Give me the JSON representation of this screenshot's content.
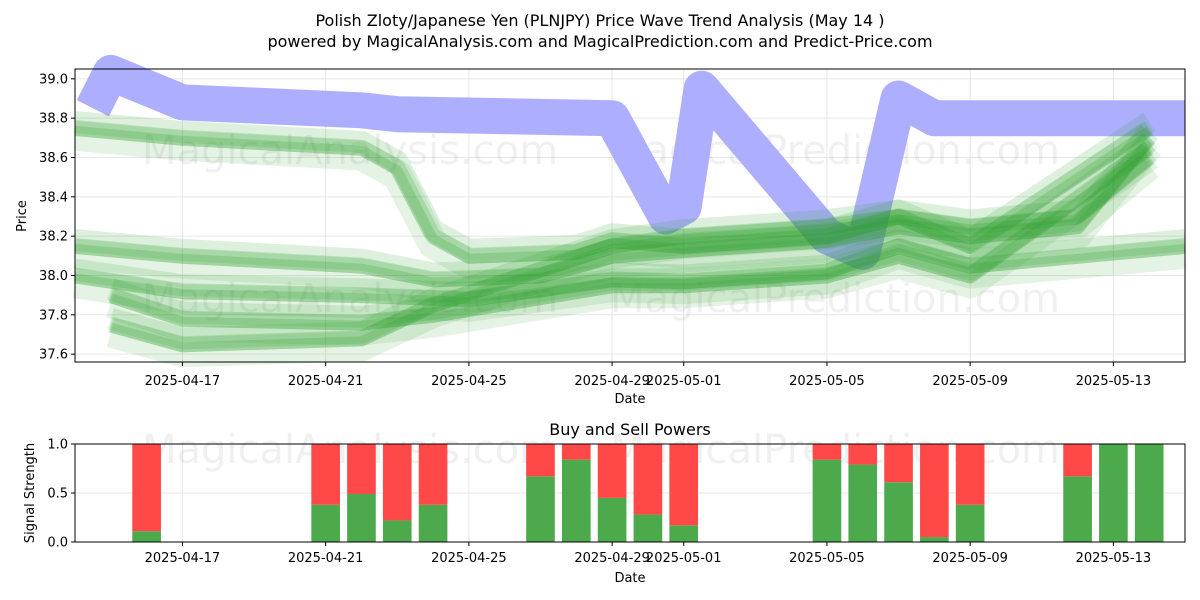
{
  "title_line1": "Polish Zloty/Japanese Yen (PLNJPY) Price Wave Trend Analysis (May 14 )",
  "title_line2": "powered by MagicalAnalysis.com and MagicalPrediction.com and Predict-Price.com",
  "watermarks": [
    "MagicalAnalysis.com",
    "MagicalPrediction.com"
  ],
  "colors": {
    "blue_band": "#aaaaff",
    "green_band": "#2ca02c",
    "buy": "#4caa4c",
    "sell": "#ff4848"
  },
  "chart_data": [
    {
      "type": "area",
      "title": "",
      "xlabel": "Date",
      "ylabel": "Price",
      "ylim": [
        37.56,
        39.05
      ],
      "yticks": [
        37.6,
        37.8,
        38.0,
        38.2,
        38.4,
        38.6,
        38.8,
        39.0
      ],
      "xticks": [
        "2025-04-17",
        "2025-04-21",
        "2025-04-25",
        "2025-04-29",
        "2025-05-01",
        "2025-05-05",
        "2025-05-09",
        "2025-05-13"
      ],
      "xlim": [
        "2025-04-14",
        "2025-05-15"
      ],
      "grid": true,
      "series": [
        {
          "color": "#aaaaff",
          "points": [
            [
              "2025-04-14T12:00",
              38.85
            ],
            [
              "2025-04-15",
              39.03
            ],
            [
              "2025-04-17",
              38.88
            ],
            [
              "2025-04-22",
              38.84
            ],
            [
              "2025-04-23",
              38.82
            ],
            [
              "2025-04-29",
              38.8
            ],
            [
              "2025-04-30T12:00",
              38.3
            ],
            [
              "2025-05-01",
              38.35
            ],
            [
              "2025-05-01T12:00",
              38.95
            ],
            [
              "2025-05-05",
              38.2
            ],
            [
              "2025-05-06",
              38.12
            ],
            [
              "2025-05-07",
              38.9
            ],
            [
              "2025-05-08",
              38.8
            ],
            [
              "2025-05-15",
              38.8
            ]
          ]
        },
        {
          "color": "#2ca02c",
          "points": [
            [
              "2025-04-14",
              38.75
            ],
            [
              "2025-04-17",
              38.7
            ],
            [
              "2025-04-22",
              38.65
            ],
            [
              "2025-04-23",
              38.55
            ],
            [
              "2025-04-24",
              38.2
            ],
            [
              "2025-04-25",
              38.1
            ],
            [
              "2025-04-28",
              38.12
            ],
            [
              "2025-04-29",
              38.18
            ],
            [
              "2025-05-01",
              38.15
            ],
            [
              "2025-05-05",
              38.2
            ],
            [
              "2025-05-07",
              38.3
            ],
            [
              "2025-05-09",
              38.25
            ],
            [
              "2025-05-12",
              38.3
            ],
            [
              "2025-05-14",
              38.6
            ]
          ]
        },
        {
          "color": "#2ca02c",
          "points": [
            [
              "2025-04-14",
              38.15
            ],
            [
              "2025-04-17",
              38.1
            ],
            [
              "2025-04-22",
              38.05
            ],
            [
              "2025-04-24",
              37.98
            ],
            [
              "2025-04-27",
              38.0
            ],
            [
              "2025-04-29",
              38.1
            ],
            [
              "2025-05-01",
              38.13
            ],
            [
              "2025-05-05",
              38.18
            ],
            [
              "2025-05-07",
              38.25
            ],
            [
              "2025-05-09",
              38.2
            ],
            [
              "2025-05-12",
              38.25
            ],
            [
              "2025-05-14",
              38.7
            ]
          ]
        },
        {
          "color": "#2ca02c",
          "points": [
            [
              "2025-04-14",
              38.0
            ],
            [
              "2025-04-17",
              37.92
            ],
            [
              "2025-04-22",
              37.9
            ],
            [
              "2025-04-25",
              37.88
            ],
            [
              "2025-04-29",
              37.98
            ],
            [
              "2025-05-01",
              37.97
            ],
            [
              "2025-05-05",
              38.02
            ],
            [
              "2025-05-07",
              38.15
            ],
            [
              "2025-05-09",
              38.05
            ],
            [
              "2025-05-12",
              38.1
            ],
            [
              "2025-05-15",
              38.15
            ]
          ]
        },
        {
          "color": "#2ca02c",
          "points": [
            [
              "2025-04-15",
              37.9
            ],
            [
              "2025-04-17",
              37.78
            ],
            [
              "2025-04-22",
              37.76
            ],
            [
              "2025-04-24",
              37.8
            ],
            [
              "2025-04-29",
              37.95
            ],
            [
              "2025-05-01",
              37.95
            ],
            [
              "2025-05-05",
              38.0
            ],
            [
              "2025-05-07",
              38.1
            ],
            [
              "2025-05-09",
              38.0
            ],
            [
              "2025-05-14",
              38.65
            ]
          ]
        },
        {
          "color": "#2ca02c",
          "points": [
            [
              "2025-04-15",
              37.75
            ],
            [
              "2025-04-17",
              37.65
            ],
            [
              "2025-04-22",
              37.68
            ],
            [
              "2025-04-24",
              37.85
            ],
            [
              "2025-04-29",
              38.15
            ],
            [
              "2025-05-01",
              38.2
            ],
            [
              "2025-05-05",
              38.25
            ],
            [
              "2025-05-07",
              38.3
            ],
            [
              "2025-05-09",
              38.15
            ],
            [
              "2025-05-14",
              38.75
            ]
          ]
        }
      ]
    },
    {
      "type": "bar",
      "title": "Buy and Sell Powers",
      "xlabel": "Date",
      "ylabel": "Signal Strength",
      "ylim": [
        0,
        1.0
      ],
      "yticks": [
        0.0,
        0.5,
        1.0
      ],
      "xticks": [
        "2025-04-17",
        "2025-04-21",
        "2025-04-25",
        "2025-04-29",
        "2025-05-01",
        "2025-05-05",
        "2025-05-09",
        "2025-05-13"
      ],
      "xlim": [
        "2025-04-14",
        "2025-05-15"
      ],
      "grid": true,
      "categories": [
        "2025-04-16",
        "2025-04-21",
        "2025-04-22",
        "2025-04-23",
        "2025-04-24",
        "2025-04-27",
        "2025-04-28",
        "2025-04-29",
        "2025-04-30",
        "2025-05-01",
        "2025-05-05",
        "2025-05-06",
        "2025-05-07",
        "2025-05-08",
        "2025-05-09",
        "2025-05-12",
        "2025-05-13",
        "2025-05-14"
      ],
      "series": [
        {
          "name": "Buy",
          "color": "#4caa4c",
          "values": [
            0.11,
            0.38,
            0.49,
            0.22,
            0.38,
            0.67,
            0.84,
            0.45,
            0.28,
            0.17,
            0.84,
            0.79,
            0.61,
            0.05,
            0.38,
            0.67,
            1.0,
            1.0
          ]
        },
        {
          "name": "Sell",
          "color": "#ff4848",
          "values": [
            0.89,
            0.62,
            0.51,
            0.78,
            0.62,
            0.33,
            0.16,
            0.55,
            0.72,
            0.83,
            0.16,
            0.21,
            0.39,
            0.95,
            0.62,
            0.33,
            0.0,
            0.0
          ]
        }
      ]
    }
  ]
}
